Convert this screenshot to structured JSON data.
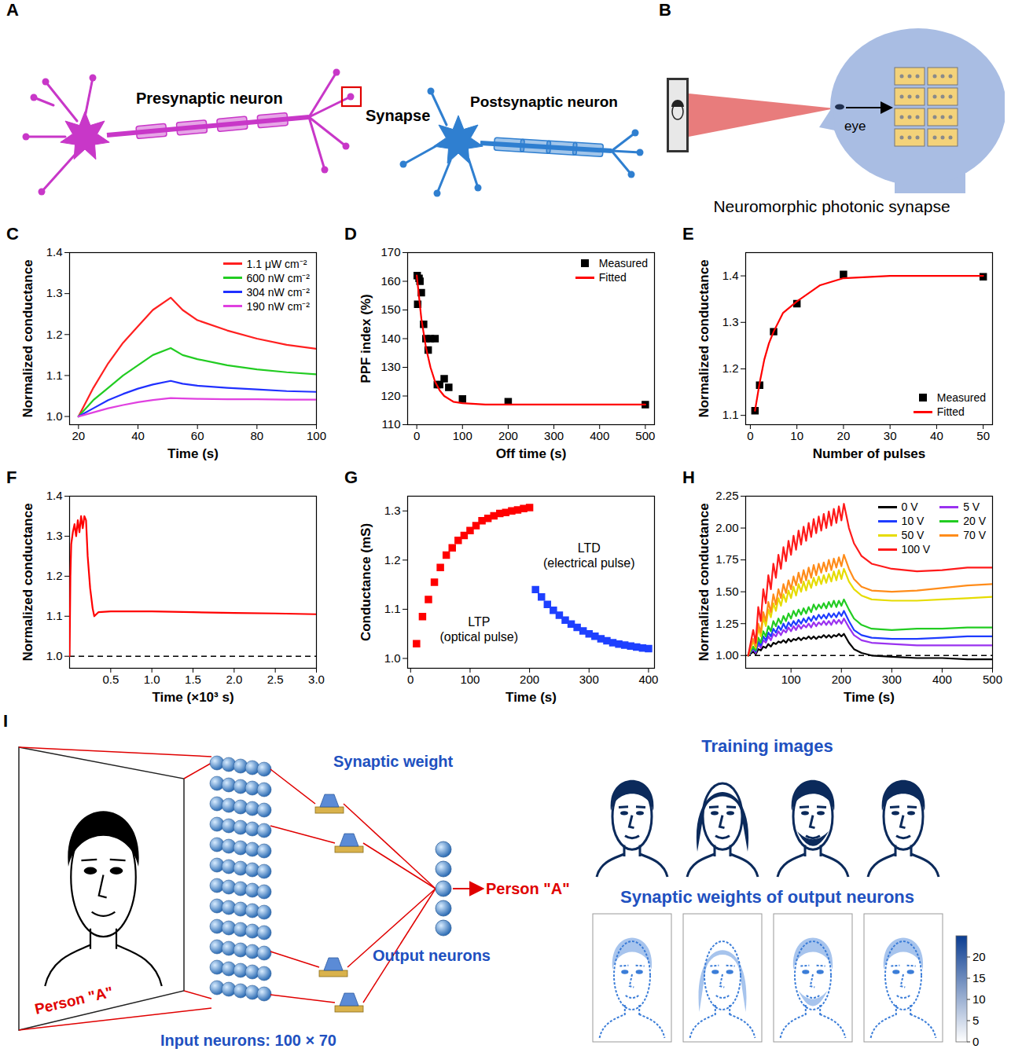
{
  "chart_data": [
    {
      "panel": "C",
      "type": "line",
      "x_label": "Time (s)",
      "y_label": "Normalized conductance",
      "x": [
        20,
        25,
        30,
        35,
        40,
        45,
        51,
        55,
        60,
        70,
        80,
        90,
        100
      ],
      "xlim": [
        17,
        100
      ],
      "xticks": [
        20,
        40,
        60,
        80,
        100
      ],
      "ylim": [
        0.98,
        1.4
      ],
      "yticks": [
        {
          "value": 1,
          "label": "1.0"
        },
        1.1,
        1.2,
        1.3,
        1.4
      ],
      "legend": "top-right",
      "series": [
        {
          "name": "1.1 μW cm⁻²",
          "color": "#ff2020",
          "values": [
            1.0,
            1.07,
            1.13,
            1.18,
            1.22,
            1.26,
            1.29,
            1.26,
            1.235,
            1.21,
            1.19,
            1.175,
            1.165
          ]
        },
        {
          "name": "600 nW cm⁻²",
          "color": "#22cc22",
          "values": [
            1.0,
            1.04,
            1.07,
            1.1,
            1.125,
            1.15,
            1.167,
            1.15,
            1.14,
            1.125,
            1.115,
            1.108,
            1.103
          ]
        },
        {
          "name": "304 nW cm⁻²",
          "color": "#2030ff",
          "values": [
            1.0,
            1.02,
            1.04,
            1.055,
            1.068,
            1.078,
            1.087,
            1.08,
            1.075,
            1.07,
            1.066,
            1.062,
            1.06
          ]
        },
        {
          "name": "190 nW cm⁻²",
          "color": "#e040e0",
          "values": [
            1.0,
            1.01,
            1.02,
            1.028,
            1.035,
            1.04,
            1.045,
            1.044,
            1.043,
            1.042,
            1.042,
            1.041,
            1.041
          ]
        }
      ]
    },
    {
      "panel": "D",
      "type": "scatter",
      "x_label": "Off time (s)",
      "y_label": "PPF index (%)",
      "xlim": [
        -20,
        520
      ],
      "xticks": [
        0,
        100,
        200,
        300,
        400,
        500
      ],
      "ylim": [
        110,
        170
      ],
      "yticks": [
        110,
        120,
        130,
        140,
        150,
        160,
        170
      ],
      "legend": "top-right",
      "series": [
        {
          "name": "Measured",
          "type": "scatter",
          "marker": "square",
          "color": "#000000",
          "x": [
            1,
            2,
            5,
            7,
            10,
            15,
            20,
            25,
            30,
            40,
            45,
            50,
            60,
            70,
            100,
            200,
            500
          ],
          "values": [
            162,
            152,
            161,
            160,
            156,
            145,
            140,
            136,
            140,
            140,
            124,
            124,
            126,
            123,
            119,
            118,
            117
          ]
        },
        {
          "name": "Fitted",
          "type": "line",
          "color": "#ff0000",
          "x": [
            0,
            10,
            20,
            30,
            40,
            50,
            60,
            80,
            100,
            150,
            200,
            300,
            500
          ],
          "values": [
            162,
            147,
            137,
            130,
            125,
            122,
            120,
            118,
            117.5,
            117,
            117,
            117,
            117
          ]
        }
      ]
    },
    {
      "panel": "E",
      "type": "scatter",
      "x_label": "Number of pulses",
      "y_label": "Normalized conductance",
      "xlim": [
        -1,
        52
      ],
      "xticks": [
        0,
        10,
        20,
        30,
        40,
        50
      ],
      "ylim": [
        1.08,
        1.45
      ],
      "yticks": [
        1.1,
        1.2,
        1.3,
        1.4
      ],
      "legend": "bottom-right",
      "series": [
        {
          "name": "Measured",
          "type": "scatter",
          "marker": "square",
          "color": "#000000",
          "x": [
            1,
            2,
            5,
            10,
            20,
            50
          ],
          "values": [
            1.11,
            1.165,
            1.28,
            1.34,
            1.403,
            1.398
          ]
        },
        {
          "name": "Fitted",
          "type": "line",
          "color": "#ff0000",
          "x": [
            1,
            2,
            3,
            4,
            5,
            7,
            10,
            15,
            20,
            30,
            40,
            50
          ],
          "values": [
            1.11,
            1.17,
            1.22,
            1.255,
            1.28,
            1.32,
            1.345,
            1.38,
            1.395,
            1.4,
            1.4,
            1.4
          ]
        }
      ]
    },
    {
      "panel": "F",
      "type": "line",
      "x_label": "Time (×10³ s)",
      "y_label": "Normalized conductance",
      "x": [
        0,
        0.01,
        0.02,
        0.04,
        0.06,
        0.08,
        0.1,
        0.12,
        0.14,
        0.16,
        0.18,
        0.2,
        0.22,
        0.25,
        0.28,
        0.3,
        0.35,
        0.5,
        1,
        1.5,
        2,
        2.5,
        3
      ],
      "xlim": [
        0,
        3
      ],
      "xticks": [
        0.5,
        {
          "value": 1,
          "label": "1.0"
        },
        1.5,
        {
          "value": 2,
          "label": "2.0"
        },
        2.5,
        {
          "value": 3,
          "label": "3.0"
        }
      ],
      "ylim": [
        0.97,
        1.4
      ],
      "yticks": [
        {
          "value": 1,
          "label": "1.0"
        },
        1.1,
        1.2,
        1.3,
        1.4
      ],
      "reference_lines": [
        {
          "y": 1,
          "line_style": "dashed"
        }
      ],
      "series": [
        {
          "color": "#ff0000",
          "values": [
            1,
            1.2,
            1.28,
            1.31,
            1.33,
            1.3,
            1.34,
            1.31,
            1.35,
            1.32,
            1.35,
            1.34,
            1.25,
            1.17,
            1.12,
            1.1,
            1.11,
            1.112,
            1.112,
            1.11,
            1.108,
            1.107,
            1.105
          ]
        }
      ]
    },
    {
      "panel": "G",
      "type": "scatter",
      "x_label": "Time (s)",
      "y_label": "Conductance (mS)",
      "xlim": [
        -5,
        410
      ],
      "xticks": [
        0,
        100,
        200,
        300,
        400
      ],
      "ylim": [
        0.98,
        1.33
      ],
      "yticks": [
        {
          "value": 1,
          "label": "1.0"
        },
        1.1,
        1.2,
        1.3
      ],
      "annotations": [
        {
          "text": "LTP\n(optical pulse)",
          "x": 115,
          "y": 1.06
        },
        {
          "text": "LTD\n(electrical pulse)",
          "x": 300,
          "y": 1.21
        }
      ],
      "series": [
        {
          "color": "#ff0000",
          "marker": "square",
          "x": [
            10,
            20,
            30,
            40,
            50,
            60,
            70,
            80,
            90,
            100,
            110,
            120,
            130,
            140,
            150,
            160,
            170,
            180,
            190,
            200
          ],
          "values": [
            1.03,
            1.085,
            1.12,
            1.155,
            1.185,
            1.21,
            1.225,
            1.24,
            1.25,
            1.26,
            1.27,
            1.28,
            1.285,
            1.29,
            1.295,
            1.297,
            1.3,
            1.302,
            1.305,
            1.307
          ]
        },
        {
          "color": "#1e40ff",
          "marker": "square",
          "x": [
            210,
            220,
            230,
            240,
            250,
            260,
            270,
            280,
            290,
            300,
            310,
            320,
            330,
            340,
            350,
            360,
            370,
            380,
            390,
            400
          ],
          "values": [
            1.14,
            1.125,
            1.11,
            1.098,
            1.088,
            1.078,
            1.07,
            1.063,
            1.056,
            1.05,
            1.045,
            1.04,
            1.036,
            1.032,
            1.029,
            1.027,
            1.025,
            1.023,
            1.021,
            1.02
          ]
        }
      ]
    },
    {
      "panel": "H",
      "type": "line",
      "x_label": "Time (s)",
      "y_label": "Normalized conductance",
      "x": [
        15,
        25,
        30,
        35,
        40,
        45,
        50,
        55,
        60,
        65,
        70,
        75,
        80,
        85,
        90,
        95,
        100,
        105,
        110,
        115,
        120,
        125,
        130,
        135,
        140,
        145,
        150,
        155,
        160,
        165,
        170,
        175,
        180,
        185,
        190,
        195,
        200,
        205,
        215,
        225,
        240,
        260,
        300,
        350,
        400,
        450,
        500
      ],
      "xlim": [
        10,
        500
      ],
      "xticks": [
        100,
        200,
        300,
        400,
        500
      ],
      "ylim": [
        0.9,
        2.25
      ],
      "yticks": [
        {
          "value": 1,
          "label": "1.00"
        },
        1.25,
        {
          "value": 1.5,
          "label": "1.50"
        },
        1.75,
        {
          "value": 2,
          "label": "2.00"
        },
        2.25
      ],
      "reference_lines": [
        {
          "y": 1,
          "line_style": "dashed"
        }
      ],
      "legend": "top-right",
      "series": [
        {
          "name": "0 V",
          "color": "#000000",
          "values": [
            1.0,
            1.03,
            1.01,
            1.05,
            1.04,
            1.07,
            1.06,
            1.09,
            1.07,
            1.1,
            1.09,
            1.11,
            1.1,
            1.12,
            1.1,
            1.13,
            1.11,
            1.13,
            1.12,
            1.14,
            1.12,
            1.14,
            1.13,
            1.15,
            1.13,
            1.15,
            1.13,
            1.15,
            1.14,
            1.16,
            1.14,
            1.16,
            1.14,
            1.16,
            1.15,
            1.17,
            1.15,
            1.17,
            1.1,
            1.05,
            1.02,
            1.0,
            0.99,
            0.98,
            0.98,
            0.97,
            0.97
          ]
        },
        {
          "name": "5 V",
          "color": "#9a32f0",
          "values": [
            1.0,
            1.05,
            1.02,
            1.09,
            1.06,
            1.12,
            1.1,
            1.15,
            1.12,
            1.17,
            1.15,
            1.19,
            1.16,
            1.2,
            1.18,
            1.22,
            1.19,
            1.23,
            1.2,
            1.24,
            1.21,
            1.24,
            1.22,
            1.25,
            1.22,
            1.26,
            1.23,
            1.26,
            1.24,
            1.27,
            1.24,
            1.27,
            1.24,
            1.28,
            1.25,
            1.28,
            1.25,
            1.29,
            1.22,
            1.16,
            1.12,
            1.1,
            1.09,
            1.08,
            1.08,
            1.08,
            1.08
          ]
        },
        {
          "name": "10 V",
          "color": "#1e3cff",
          "values": [
            1.0,
            1.06,
            1.03,
            1.11,
            1.08,
            1.15,
            1.12,
            1.18,
            1.15,
            1.21,
            1.18,
            1.23,
            1.2,
            1.25,
            1.21,
            1.26,
            1.23,
            1.27,
            1.24,
            1.28,
            1.25,
            1.29,
            1.26,
            1.3,
            1.27,
            1.31,
            1.28,
            1.32,
            1.29,
            1.32,
            1.29,
            1.33,
            1.3,
            1.33,
            1.3,
            1.34,
            1.31,
            1.35,
            1.27,
            1.2,
            1.16,
            1.14,
            1.13,
            1.13,
            1.14,
            1.15,
            1.15
          ]
        },
        {
          "name": "20 V",
          "color": "#22cc22",
          "values": [
            1.0,
            1.07,
            1.04,
            1.14,
            1.1,
            1.19,
            1.15,
            1.23,
            1.19,
            1.27,
            1.23,
            1.29,
            1.25,
            1.31,
            1.27,
            1.33,
            1.29,
            1.35,
            1.31,
            1.36,
            1.32,
            1.37,
            1.33,
            1.38,
            1.34,
            1.4,
            1.36,
            1.4,
            1.37,
            1.41,
            1.37,
            1.42,
            1.38,
            1.43,
            1.38,
            1.43,
            1.39,
            1.44,
            1.36,
            1.29,
            1.24,
            1.21,
            1.2,
            1.21,
            1.21,
            1.22,
            1.22
          ]
        },
        {
          "name": "50 V",
          "color": "#e6dc00",
          "values": [
            1.0,
            1.11,
            1.06,
            1.22,
            1.15,
            1.3,
            1.23,
            1.36,
            1.3,
            1.41,
            1.35,
            1.45,
            1.39,
            1.48,
            1.42,
            1.51,
            1.45,
            1.54,
            1.47,
            1.56,
            1.5,
            1.58,
            1.51,
            1.59,
            1.53,
            1.61,
            1.55,
            1.62,
            1.56,
            1.63,
            1.57,
            1.64,
            1.58,
            1.66,
            1.59,
            1.67,
            1.6,
            1.68,
            1.58,
            1.52,
            1.47,
            1.44,
            1.43,
            1.43,
            1.44,
            1.45,
            1.46
          ]
        },
        {
          "name": "70 V",
          "color": "#ff8c1a",
          "values": [
            1.0,
            1.13,
            1.07,
            1.25,
            1.18,
            1.34,
            1.27,
            1.42,
            1.34,
            1.48,
            1.4,
            1.52,
            1.45,
            1.56,
            1.49,
            1.59,
            1.52,
            1.62,
            1.55,
            1.65,
            1.57,
            1.67,
            1.59,
            1.69,
            1.61,
            1.71,
            1.63,
            1.72,
            1.65,
            1.73,
            1.66,
            1.75,
            1.67,
            1.76,
            1.69,
            1.77,
            1.7,
            1.79,
            1.68,
            1.6,
            1.54,
            1.51,
            1.5,
            1.51,
            1.53,
            1.55,
            1.56
          ]
        },
        {
          "name": "100 V",
          "color": "#ff1a1a",
          "values": [
            1.0,
            1.2,
            1.1,
            1.38,
            1.27,
            1.52,
            1.41,
            1.63,
            1.52,
            1.72,
            1.61,
            1.79,
            1.68,
            1.85,
            1.74,
            1.9,
            1.79,
            1.94,
            1.83,
            1.98,
            1.87,
            2.01,
            1.9,
            2.04,
            1.93,
            2.07,
            1.96,
            2.09,
            1.98,
            2.11,
            2.0,
            2.13,
            2.02,
            2.15,
            2.04,
            2.17,
            2.06,
            2.19,
            2.0,
            1.88,
            1.78,
            1.72,
            1.68,
            1.66,
            1.67,
            1.69,
            1.69
          ]
        }
      ]
    }
  ],
  "diagrams": {
    "A": {
      "panel": "A",
      "presynaptic": "Presynaptic neuron",
      "synapse": "Synapse",
      "postsynaptic": "Postsynaptic neuron"
    },
    "B": {
      "panel": "B",
      "eye_label": "eye",
      "caption": "Neuromorphic photonic synapse"
    },
    "I": {
      "panel": "I",
      "image_label": "Person \"A\"",
      "synaptic_weight": "Synaptic weight",
      "output_neurons": "Output neurons",
      "output_label": "Person \"A\"",
      "input_neurons": "Input neurons: 100 × 70",
      "training_title": "Training images",
      "weights_title": "Synaptic weights of output neurons",
      "colorbar": {
        "range": [
          0,
          25
        ],
        "ticks": [
          0,
          5,
          10,
          15,
          20
        ]
      }
    }
  }
}
